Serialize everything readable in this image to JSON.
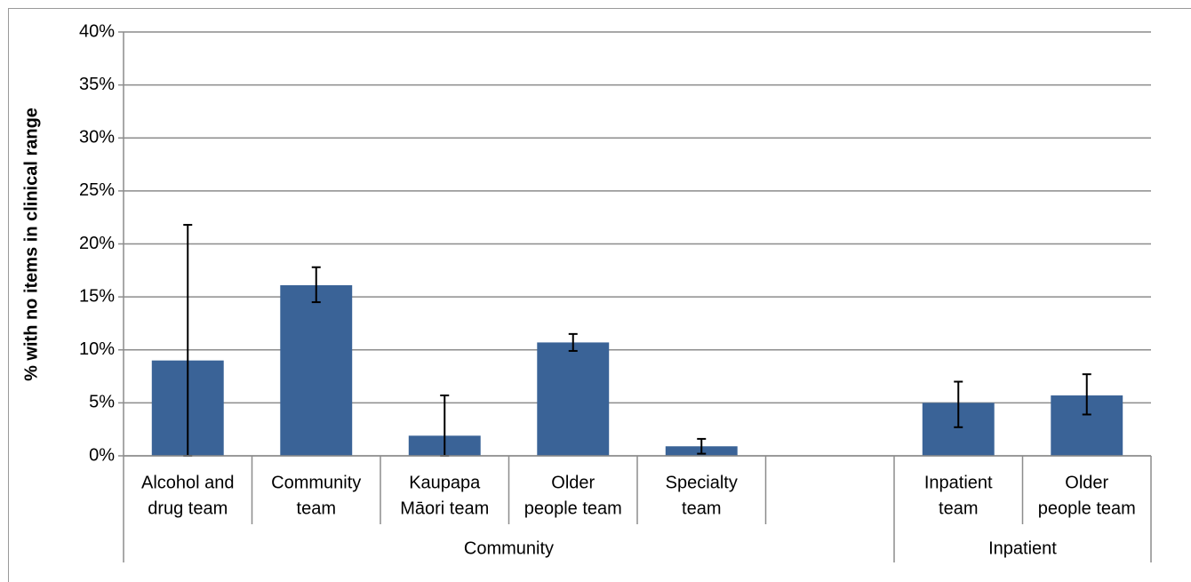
{
  "chart_data": {
    "type": "bar",
    "y_label": "% with no items in clinical range",
    "categories": [
      [
        "Alcohol and",
        "drug team"
      ],
      [
        "Community",
        "team"
      ],
      [
        "Kaupapa",
        "Māori team"
      ],
      [
        "Older",
        "people team"
      ],
      [
        "Specialty",
        "team"
      ],
      null,
      [
        "Inpatient",
        "team"
      ],
      [
        "Older",
        "people team"
      ]
    ],
    "groups": [
      "Community",
      "Community",
      "Community",
      "Community",
      "Community",
      "Community",
      "Inpatient",
      "Inpatient"
    ],
    "values": [
      9.0,
      16.1,
      1.9,
      10.7,
      0.9,
      null,
      5.0,
      5.7
    ],
    "ci_low": [
      0,
      14.5,
      0,
      9.9,
      0.2,
      null,
      2.7,
      3.9
    ],
    "ci_high": [
      21.8,
      17.8,
      5.7,
      11.5,
      1.6,
      null,
      7.0,
      7.7
    ],
    "color": "#3a6397",
    "ylim": [
      0,
      40
    ],
    "yticks": [
      {
        "value": 0,
        "label": "0%"
      },
      {
        "value": 5,
        "label": "5%"
      },
      {
        "value": 10,
        "label": "10%"
      },
      {
        "value": 15,
        "label": "15%"
      },
      {
        "value": 20,
        "label": "20%"
      },
      {
        "value": 25,
        "label": "25%"
      },
      {
        "value": 30,
        "label": "30%"
      },
      {
        "value": 35,
        "label": "35%"
      },
      {
        "value": 40,
        "label": "40%"
      }
    ],
    "grid": true
  }
}
